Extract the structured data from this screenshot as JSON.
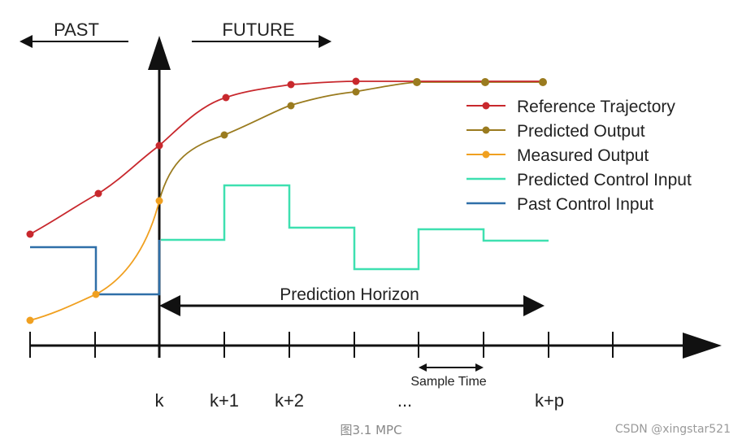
{
  "header": {
    "past_label": "PAST",
    "future_label": "FUTURE"
  },
  "legend": [
    {
      "label": "Reference Trajectory",
      "color": "#c8282d",
      "kind": "line-dot"
    },
    {
      "label": "Predicted Output",
      "color": "#9a7b1f",
      "kind": "line-dot"
    },
    {
      "label": "Measured Output",
      "color": "#f0a020",
      "kind": "line-dot"
    },
    {
      "label": "Predicted Control Input",
      "color": "#3ee0b0",
      "kind": "line"
    },
    {
      "label": "Past Control Input",
      "color": "#2f6fa8",
      "kind": "line"
    }
  ],
  "horizon_label": "Prediction Horizon",
  "sample_time_label": "Sample Time",
  "axis_ticks": [
    "k",
    "k+1",
    "k+2",
    "...",
    "k+p"
  ],
  "caption": "图3.1 MPC",
  "watermark": "CSDN @xingstar521",
  "colors": {
    "axis": "#111111",
    "reference": "#c8282d",
    "predicted_output": "#9a7b1f",
    "measured": "#f0a020",
    "predicted_control": "#3ee0b0",
    "past_control": "#2f6fa8"
  }
}
